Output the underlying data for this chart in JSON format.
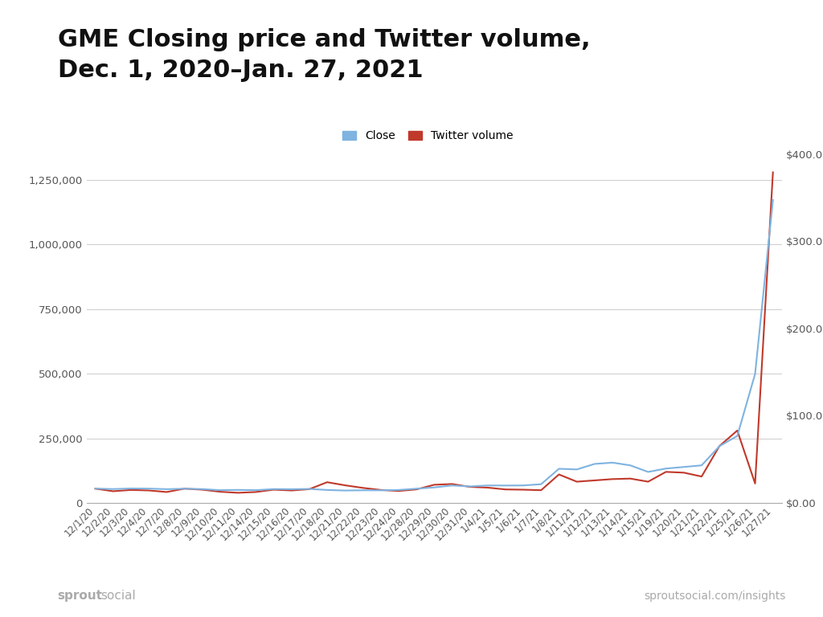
{
  "title_line1": "GME Closing price and Twitter volume,",
  "title_line2": "Dec. 1, 2020–Jan. 27, 2021",
  "legend_labels": [
    "Close",
    "Twitter volume"
  ],
  "line_colors": [
    "#7fb3e0",
    "#c0392b"
  ],
  "background_color": "#ffffff",
  "dates": [
    "12/1/20",
    "12/2/20",
    "12/3/20",
    "12/4/20",
    "12/7/20",
    "12/8/20",
    "12/9/20",
    "12/10/20",
    "12/11/20",
    "12/14/20",
    "12/15/20",
    "12/16/20",
    "12/17/20",
    "12/18/20",
    "12/21/20",
    "12/22/20",
    "12/23/20",
    "12/24/20",
    "12/28/20",
    "12/29/20",
    "12/30/20",
    "12/31/20",
    "1/4/21",
    "1/5/21",
    "1/6/21",
    "1/7/21",
    "1/8/21",
    "1/11/21",
    "1/12/21",
    "1/13/21",
    "1/14/21",
    "1/15/21",
    "1/19/21",
    "1/20/21",
    "1/21/21",
    "1/22/21",
    "1/25/21",
    "1/26/21",
    "1/27/21"
  ],
  "close_price": [
    16.35,
    15.84,
    16.49,
    16.35,
    15.71,
    16.23,
    15.8,
    14.57,
    14.85,
    14.57,
    15.8,
    15.66,
    15.98,
    14.79,
    14.14,
    14.44,
    14.37,
    14.78,
    16.23,
    17.69,
    19.95,
    18.84,
    19.95,
    19.9,
    20.0,
    21.4,
    39.12,
    38.33,
    44.68,
    46.15,
    43.03,
    35.5,
    39.36,
    41.17,
    43.03,
    65.01,
    76.79,
    147.98,
    347.51
  ],
  "twitter_volume": [
    55000,
    45000,
    50000,
    48000,
    42000,
    55000,
    51000,
    43000,
    39000,
    42000,
    51000,
    48000,
    53000,
    80000,
    68000,
    58000,
    50000,
    46000,
    52000,
    70000,
    73000,
    62000,
    59000,
    52000,
    51000,
    49000,
    110000,
    82000,
    87000,
    92000,
    94000,
    82000,
    120000,
    117000,
    102000,
    220000,
    280000,
    75000,
    1280000
  ],
  "ylim_left": [
    0,
    1350000
  ],
  "ylim_right": [
    0,
    400
  ],
  "yticks_left": [
    0,
    250000,
    500000,
    750000,
    1000000,
    1250000
  ],
  "yticks_right": [
    0.0,
    100.0,
    200.0,
    300.0,
    400.0
  ],
  "footer_left_bold": "sprout",
  "footer_left_normal": "social",
  "footer_right": "sproutsocial.com/insights",
  "grid_color": "#cccccc",
  "tick_color": "#555555",
  "title_fontsize": 22,
  "tick_fontsize": 8.5
}
